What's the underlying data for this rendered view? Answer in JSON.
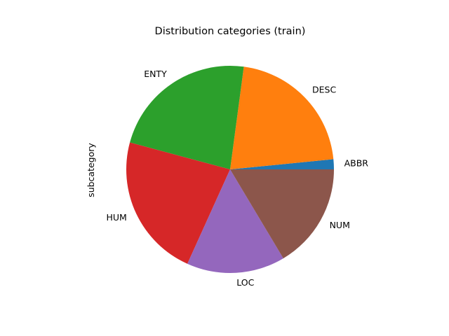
{
  "chart_data": {
    "type": "pie",
    "title": "Distribution categories (train)",
    "ylabel": "subcategory",
    "categories": [
      "ABBR",
      "DESC",
      "ENTY",
      "HUM",
      "LOC",
      "NUM"
    ],
    "values": [
      86,
      1162,
      1250,
      1223,
      835,
      896
    ],
    "colors": [
      "#1f77b4",
      "#ff7f0e",
      "#2ca02c",
      "#d62728",
      "#9467bd",
      "#8c564b"
    ],
    "start_angle": 0,
    "direction": "counterclockwise"
  }
}
